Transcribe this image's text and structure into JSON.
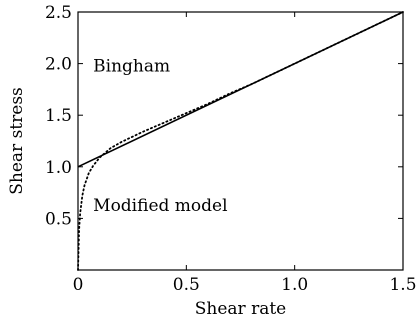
{
  "chart_data": {
    "type": "line",
    "title": "",
    "xlabel": "Shear rate",
    "ylabel": "Shear stress",
    "xlim": [
      0,
      1.5
    ],
    "ylim": [
      0,
      2.5
    ],
    "x_ticks": [
      {
        "value": 0,
        "label": "0"
      },
      {
        "value": 0.5,
        "label": "0.5"
      },
      {
        "value": 1.0,
        "label": "1.0"
      },
      {
        "value": 1.5,
        "label": "1.5"
      }
    ],
    "y_ticks": [
      {
        "value": 0.5,
        "label": "0.5"
      },
      {
        "value": 1.0,
        "label": "1.0"
      },
      {
        "value": 1.5,
        "label": "1.5"
      },
      {
        "value": 2.0,
        "label": "2.0"
      },
      {
        "value": 2.5,
        "label": "2.5"
      }
    ],
    "grid": false,
    "series": [
      {
        "style": "solid",
        "color": "#000000",
        "x": [
          0.0,
          1.5
        ],
        "y": [
          1.0,
          2.5
        ]
      },
      {
        "style": "dotted",
        "color": "#000000",
        "x": [
          0.0,
          0.005,
          0.01,
          0.02,
          0.03,
          0.05,
          0.07,
          0.1,
          0.15,
          0.2,
          0.3,
          0.4,
          0.5,
          0.6,
          0.7,
          0.8,
          0.9,
          1.0,
          1.1,
          1.2,
          1.3,
          1.4,
          1.5
        ],
        "y": [
          0.0,
          0.39,
          0.55,
          0.72,
          0.82,
          0.94,
          1.01,
          1.09,
          1.18,
          1.24,
          1.34,
          1.43,
          1.52,
          1.61,
          1.71,
          1.8,
          1.9,
          2.0,
          2.1,
          2.2,
          2.3,
          2.4,
          2.5
        ]
      }
    ],
    "annotations": [
      {
        "text": "Bingham",
        "x": 0.07,
        "y": 1.98
      },
      {
        "text": "Modified model",
        "x": 0.07,
        "y": 0.63
      }
    ]
  }
}
